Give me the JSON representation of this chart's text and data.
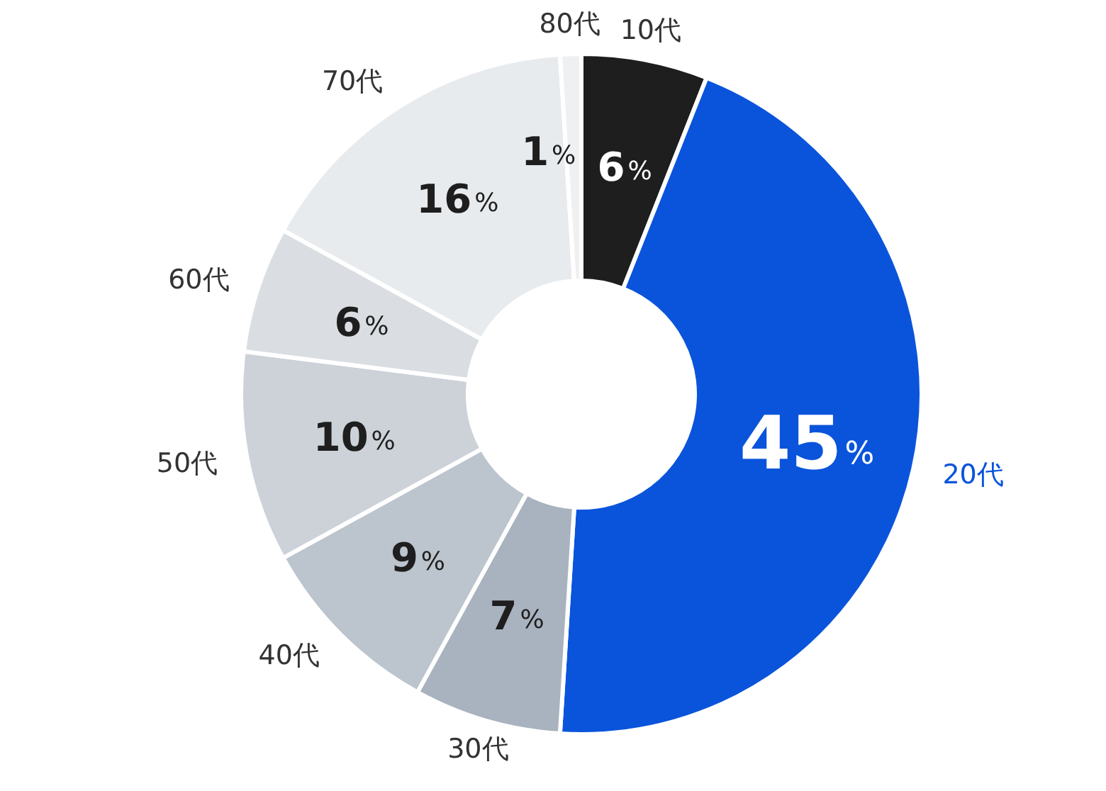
{
  "chart_data": {
    "type": "donut",
    "categories": [
      "10代",
      "20代",
      "30代",
      "40代",
      "50代",
      "60代",
      "70代",
      "80代"
    ],
    "values": [
      6,
      45,
      7,
      9,
      10,
      6,
      16,
      1
    ],
    "value_labels": [
      "6%",
      "45%",
      "7%",
      "9%",
      "10%",
      "6%",
      "16%",
      "1%"
    ],
    "colors": [
      "#1e1e1e",
      "#0a54dc",
      "#a9b3bf",
      "#bcc4cd",
      "#ccd2d8",
      "#dadee2",
      "#e8ebee",
      "#eef0f2"
    ],
    "legend": false
  }
}
